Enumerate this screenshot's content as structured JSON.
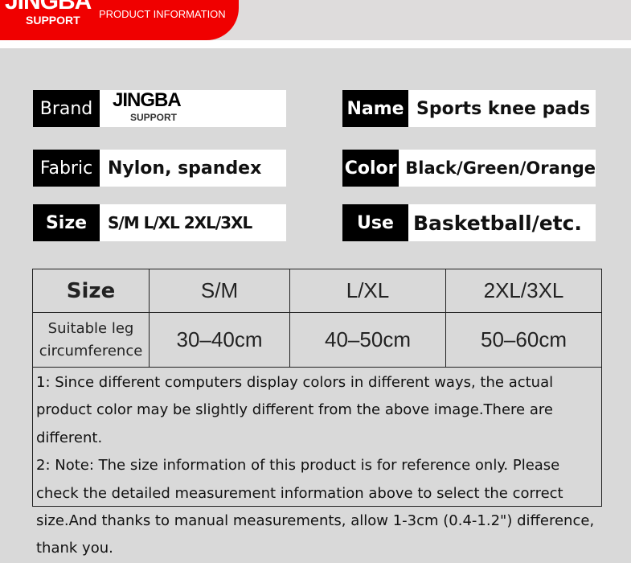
{
  "header": {
    "logo_main": "JINGBA",
    "logo_sub": "SUPPORT",
    "title": "PRODUCT INFORMATION"
  },
  "info": [
    {
      "label": "Brand",
      "value": "JINGBA",
      "value_sub": "SUPPORT"
    },
    {
      "label": "Name",
      "value": "Sports knee pads"
    },
    {
      "label": "Fabric",
      "value": "Nylon, spandex"
    },
    {
      "label": "Color",
      "value": "Black/Green/Orange"
    },
    {
      "label": "Size",
      "value": "S/M L/XL 2XL/3XL"
    },
    {
      "label": "Use",
      "value": "Basketball/etc."
    }
  ],
  "size_table": {
    "header": [
      "Size",
      "S/M",
      "L/XL",
      "2XL/3XL"
    ],
    "row": [
      "Suitable leg circumference",
      "30–40cm",
      "40–50cm",
      "50–60cm"
    ]
  },
  "notes": [
    "1: Since different computers display colors in different ways, the actual product color may be slightly different from the above image.There are different.",
    "2: Note: The size information of this product is for reference only. Please check the detailed measurement information above to select the correct size.And thanks to manual measurements, allow 1-3cm (0.4-1.2\") difference, thank you."
  ]
}
